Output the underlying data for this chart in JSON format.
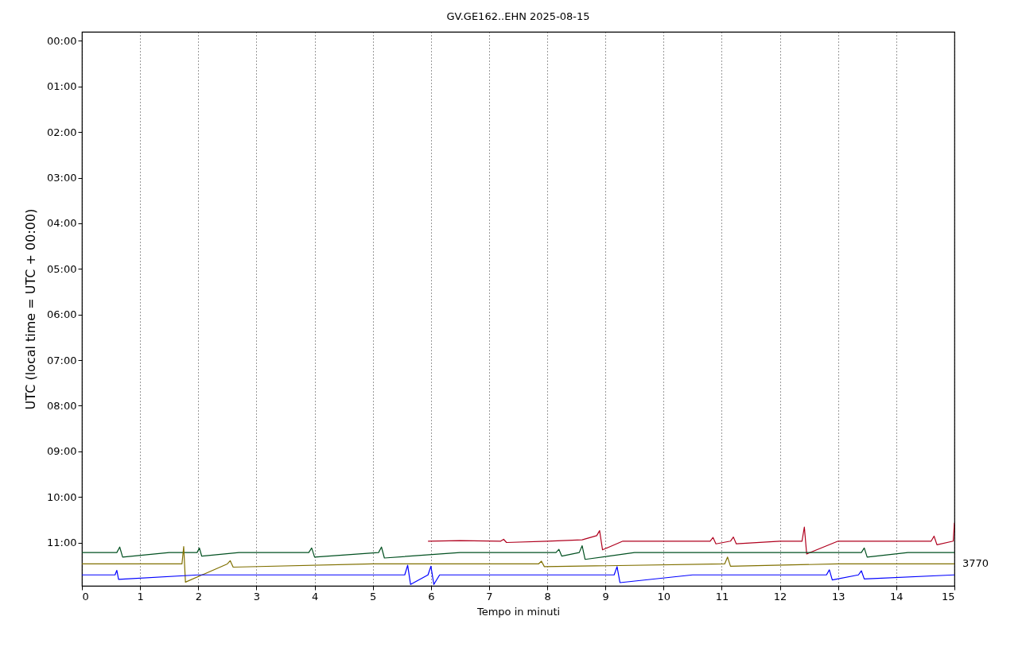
{
  "chart_data": {
    "type": "line",
    "title": "GV.GE162..EHN 2025-08-15",
    "xlabel": "Tempo in minuti",
    "ylabel": "UTC (local time = UTC + 00:00)",
    "xlim": [
      0,
      15
    ],
    "xticks": [
      0,
      1,
      2,
      3,
      4,
      5,
      6,
      7,
      8,
      9,
      10,
      11,
      12,
      13,
      14,
      15
    ],
    "ylim": [
      11.95,
      -0.2
    ],
    "yticks": [
      {
        "value": 0,
        "label": "00:00"
      },
      {
        "value": 1,
        "label": "01:00"
      },
      {
        "value": 2,
        "label": "02:00"
      },
      {
        "value": 3,
        "label": "03:00"
      },
      {
        "value": 4,
        "label": "04:00"
      },
      {
        "value": 5,
        "label": "05:00"
      },
      {
        "value": 6,
        "label": "06:00"
      },
      {
        "value": 7,
        "label": "07:00"
      },
      {
        "value": 8,
        "label": "08:00"
      },
      {
        "value": 9,
        "label": "09:00"
      },
      {
        "value": 10,
        "label": "10:00"
      },
      {
        "value": 11,
        "label": "11:00"
      }
    ],
    "grid": "x",
    "series": [
      {
        "color": "#b0001e",
        "x": [
          5.95,
          6.5,
          7.2,
          7.25,
          7.3,
          8.0,
          8.6,
          8.85,
          8.9,
          8.95,
          9.3,
          10.0,
          10.8,
          10.85,
          10.9,
          11.15,
          11.2,
          11.25,
          12.0,
          12.38,
          12.42,
          12.46,
          13.0,
          14.0,
          14.6,
          14.65,
          14.7,
          14.98,
          15.0
        ],
        "values": [
          10.97,
          10.96,
          10.97,
          10.93,
          11.0,
          10.97,
          10.94,
          10.85,
          10.74,
          11.16,
          10.97,
          10.97,
          10.97,
          10.89,
          11.03,
          10.97,
          10.88,
          11.03,
          10.97,
          10.97,
          10.66,
          11.25,
          10.97,
          10.97,
          10.97,
          10.86,
          11.05,
          10.97,
          10.57
        ]
      },
      {
        "color": "#005020",
        "x": [
          0,
          0.6,
          0.65,
          0.7,
          1.5,
          1.98,
          2.02,
          2.06,
          2.7,
          3.9,
          3.95,
          4.0,
          5.1,
          5.15,
          5.2,
          6.5,
          8.15,
          8.2,
          8.25,
          8.55,
          8.6,
          8.65,
          9.5,
          11,
          12,
          13.4,
          13.45,
          13.5,
          14.2,
          15
        ],
        "values": [
          11.22,
          11.22,
          11.1,
          11.32,
          11.22,
          11.22,
          11.12,
          11.3,
          11.22,
          11.22,
          11.12,
          11.32,
          11.22,
          11.1,
          11.34,
          11.22,
          11.22,
          11.15,
          11.3,
          11.22,
          11.07,
          11.37,
          11.22,
          11.22,
          11.22,
          11.22,
          11.12,
          11.32,
          11.22,
          11.22
        ]
      },
      {
        "color": "#807000",
        "x": [
          0,
          1.0,
          1.72,
          1.75,
          1.78,
          2.5,
          2.55,
          2.6,
          5.0,
          7.85,
          7.9,
          7.95,
          11.05,
          11.1,
          11.15,
          13,
          15
        ],
        "values": [
          11.47,
          11.47,
          11.47,
          11.09,
          11.87,
          11.47,
          11.4,
          11.54,
          11.47,
          11.47,
          11.41,
          11.53,
          11.47,
          11.32,
          11.52,
          11.47,
          11.47
        ]
      },
      {
        "color": "#0000ff",
        "x": [
          0,
          0.57,
          0.6,
          0.63,
          2.0,
          4.2,
          5.55,
          5.6,
          5.65,
          5.95,
          6.0,
          6.05,
          6.15,
          9.15,
          9.2,
          9.25,
          10.5,
          12.8,
          12.85,
          12.9,
          13.35,
          13.4,
          13.45,
          15
        ],
        "values": [
          11.71,
          11.71,
          11.61,
          11.81,
          11.71,
          11.71,
          11.71,
          11.5,
          11.92,
          11.71,
          11.52,
          11.92,
          11.71,
          11.71,
          11.53,
          11.88,
          11.71,
          11.71,
          11.6,
          11.82,
          11.71,
          11.62,
          11.8,
          11.71
        ]
      }
    ],
    "annotations": [
      {
        "text": "3770",
        "x": 15,
        "y": 11.47
      }
    ]
  }
}
